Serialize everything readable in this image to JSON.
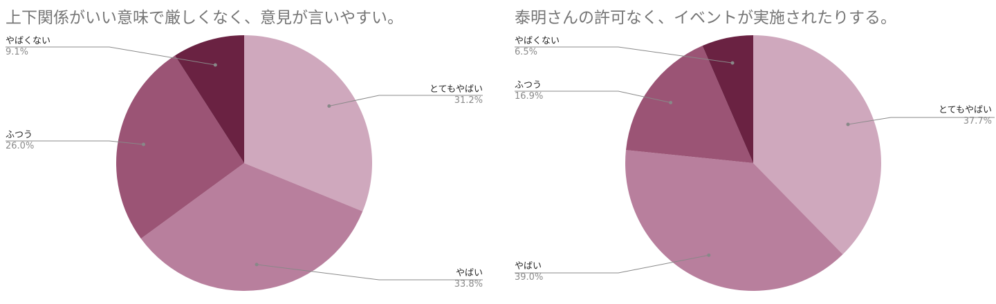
{
  "chart_data": [
    {
      "type": "pie",
      "title": "上下関係がいい意味で厳しくなく、意見が言いやすい。",
      "slices": [
        {
          "label": "とてもやばい",
          "value": 31.2,
          "percent_label": "31.2%",
          "color": "#cfa8bd"
        },
        {
          "label": "やばい",
          "value": 33.8,
          "percent_label": "33.8%",
          "color": "#b87f9d"
        },
        {
          "label": "ふつう",
          "value": 26.0,
          "percent_label": "26.0%",
          "color": "#9b5475"
        },
        {
          "label": "やばくない",
          "value": 9.1,
          "percent_label": "9.1%",
          "color": "#6a2242"
        }
      ],
      "start_angle_deg": 0,
      "direction": "clockwise",
      "label_placement": "outside-with-leader-lines"
    },
    {
      "type": "pie",
      "title": "泰明さんの許可なく、イベントが実施されたりする。",
      "slices": [
        {
          "label": "とてもやばい",
          "value": 37.7,
          "percent_label": "37.7%",
          "color": "#cfa8bd"
        },
        {
          "label": "やばい",
          "value": 39.0,
          "percent_label": "39.0%",
          "color": "#b87f9d"
        },
        {
          "label": "ふつう",
          "value": 16.9,
          "percent_label": "16.9%",
          "color": "#9b5475"
        },
        {
          "label": "やばくない",
          "value": 6.5,
          "percent_label": "6.5%",
          "color": "#6a2242"
        }
      ],
      "start_angle_deg": 0,
      "direction": "clockwise",
      "label_placement": "outside-with-leader-lines"
    }
  ]
}
